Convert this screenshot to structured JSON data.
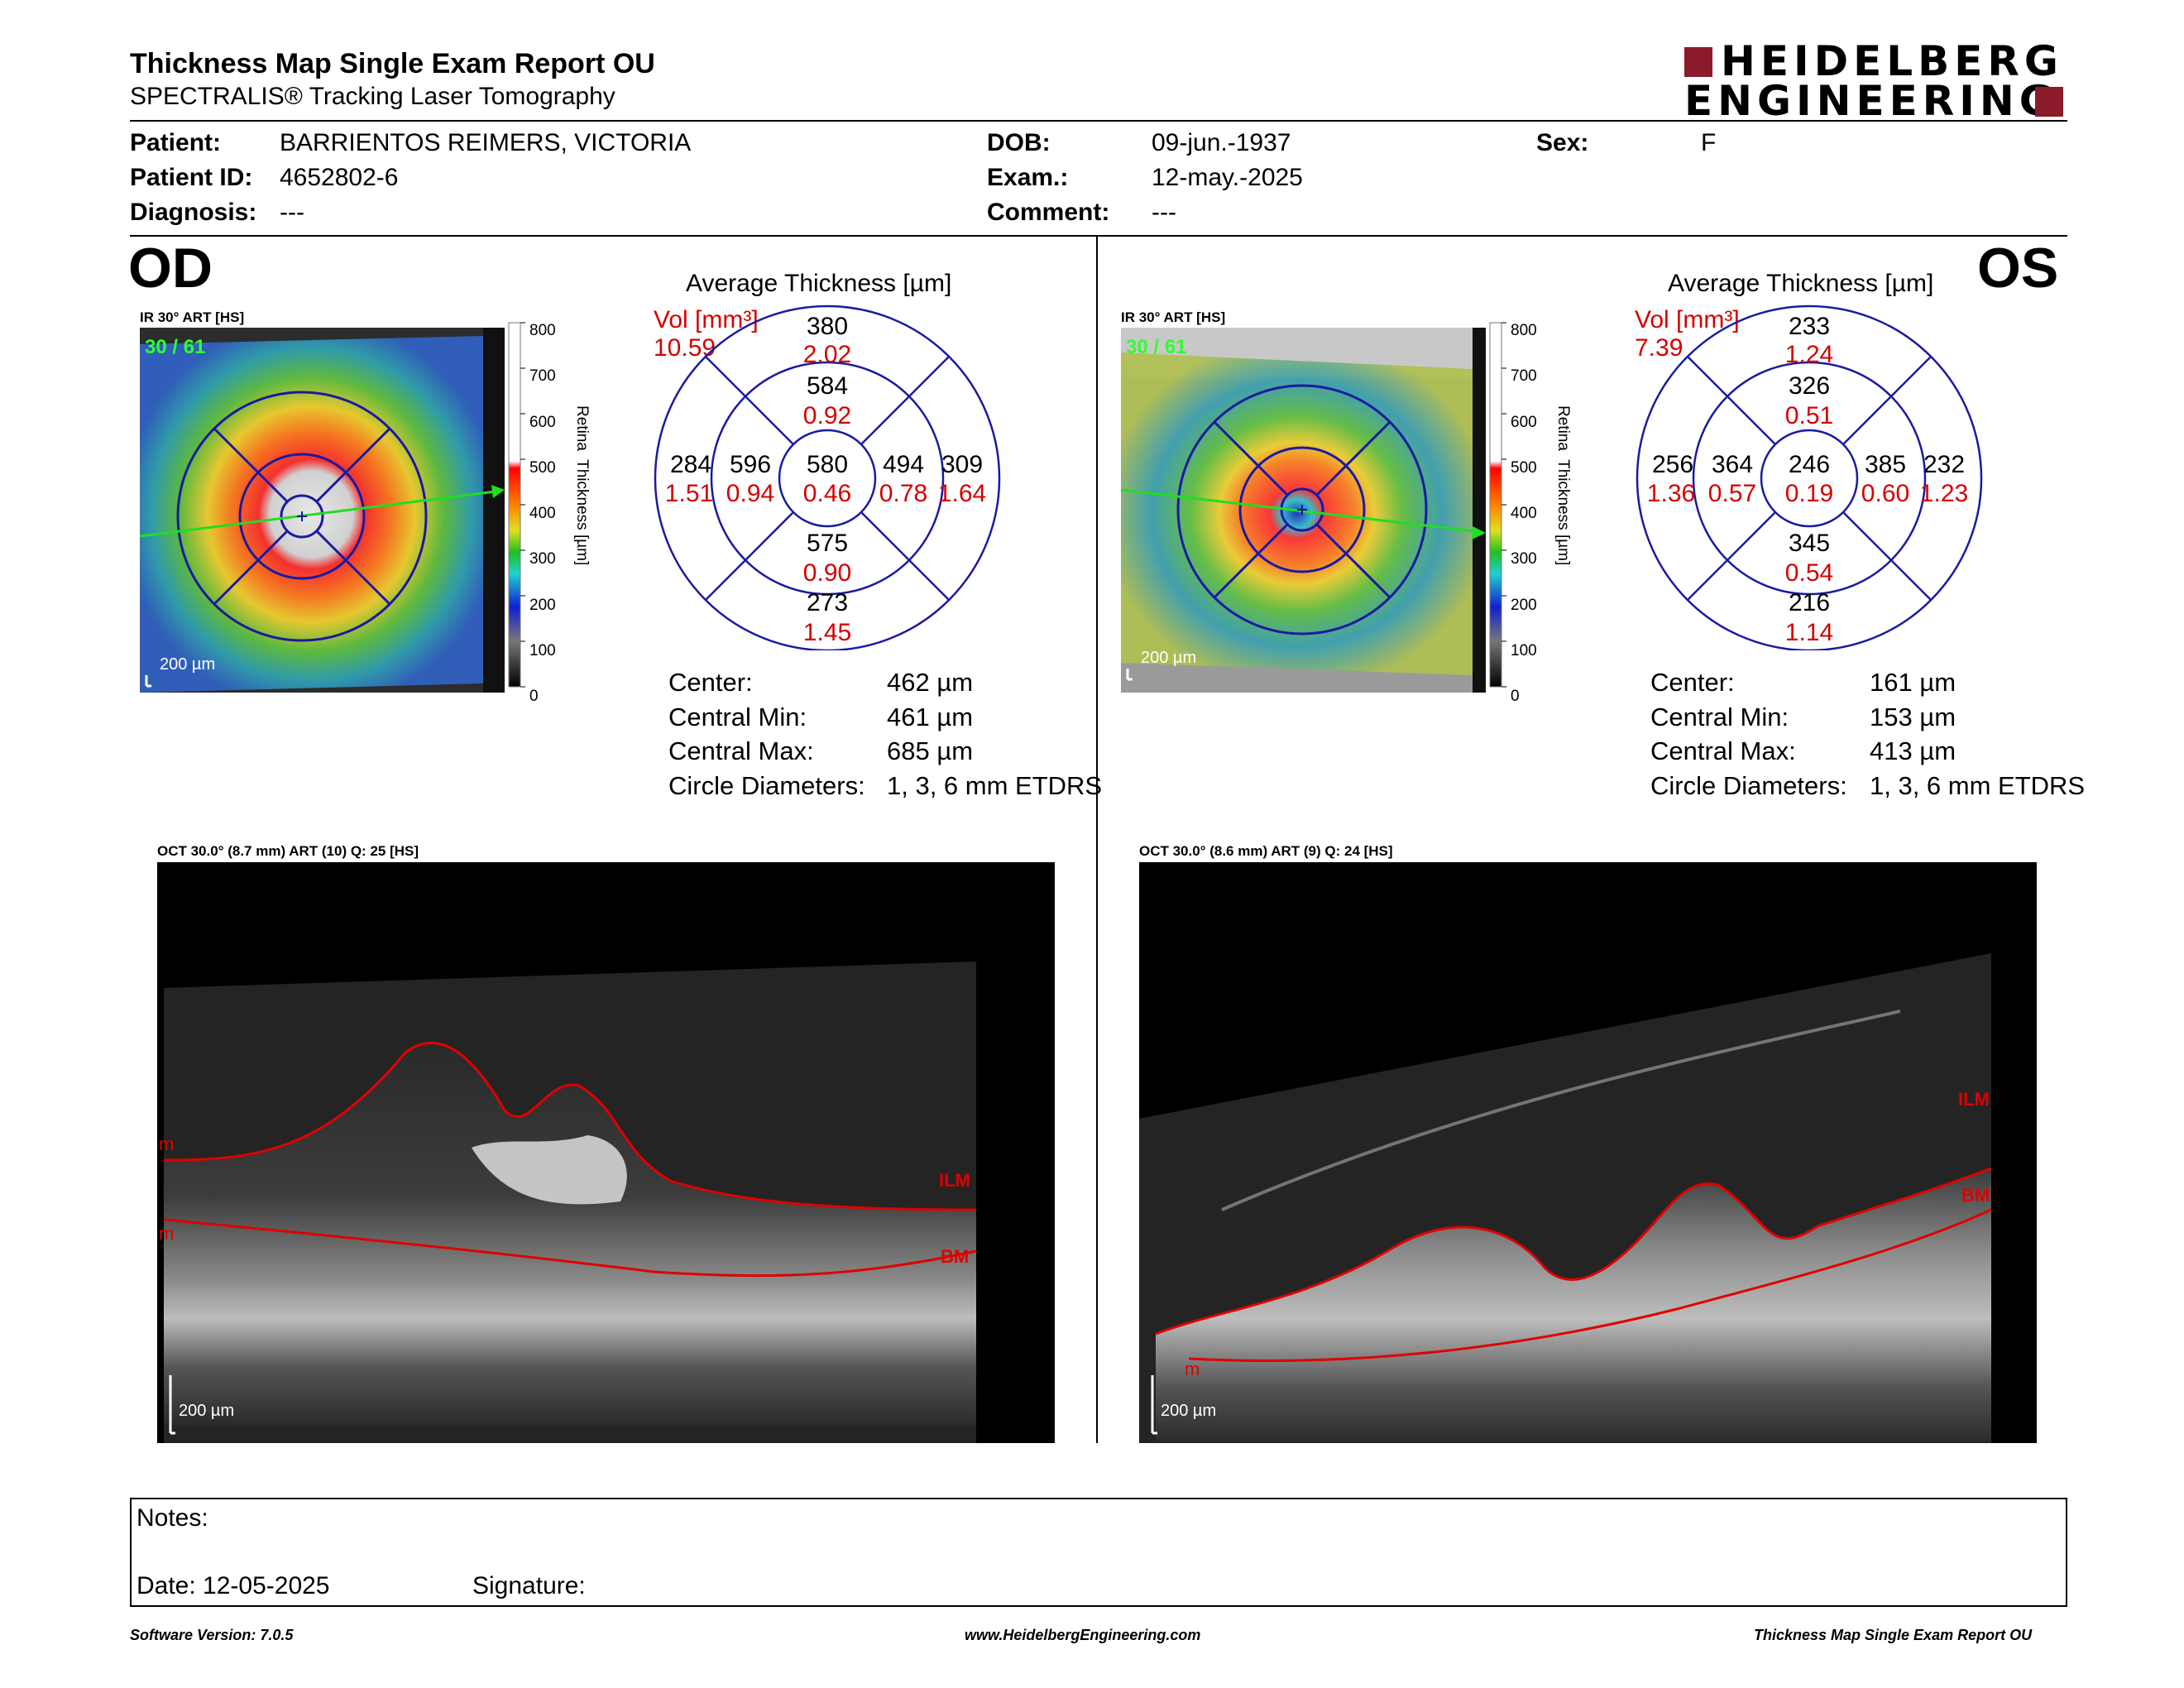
{
  "header": {
    "title": "Thickness Map Single Exam Report OU",
    "subtitle": "SPECTRALIS® Tracking Laser Tomography",
    "logo_line1": "HEIDELBERG",
    "logo_line2": "ENGINEERING"
  },
  "patient": {
    "patient_label": "Patient:",
    "patient_value": "BARRIENTOS REIMERS, VICTORIA",
    "id_label": "Patient ID:",
    "id_value": "4652802-6",
    "diagnosis_label": "Diagnosis:",
    "diagnosis_value": "---",
    "dob_label": "DOB:",
    "dob_value": "09-jun.-1937",
    "exam_label": "Exam.:",
    "exam_value": "12-may.-2025",
    "comment_label": "Comment:",
    "comment_value": "---",
    "sex_label": "Sex:",
    "sex_value": "F"
  },
  "colors": {
    "red_values": "#d40000",
    "ring_blue": "#1a1aa0",
    "logo_red": "#8b1a2b"
  },
  "od": {
    "eye_label": "OD",
    "ir_label": "IR 30° ART [HS]",
    "frame_counter": "30 / 61",
    "scale_bar": "200 µm",
    "colorbar_ticks": [
      "800",
      "700",
      "600",
      "500",
      "400",
      "300",
      "200",
      "100",
      "0"
    ],
    "colorbar_axis": "Retina  Thickness [µm]",
    "avg_title": "Average Thickness [µm]",
    "vol_label": "Vol [mm³]",
    "vol_value": "10.59",
    "sectors": {
      "outer_top": {
        "t": "380",
        "v": "2.02"
      },
      "inner_top": {
        "t": "584",
        "v": "0.92"
      },
      "center": {
        "t": "580",
        "v": "0.46"
      },
      "inner_bottom": {
        "t": "575",
        "v": "0.90"
      },
      "outer_bottom": {
        "t": "273",
        "v": "1.45"
      },
      "outer_left": {
        "t": "284",
        "v": "1.51"
      },
      "inner_left": {
        "t": "596",
        "v": "0.94"
      },
      "inner_right": {
        "t": "494",
        "v": "0.78"
      },
      "outer_right": {
        "t": "309",
        "v": "1.64"
      }
    },
    "stats": [
      {
        "label": "Center:",
        "value": "462 µm"
      },
      {
        "label": "Central Min:",
        "value": "461 µm"
      },
      {
        "label": "Central Max:",
        "value": "685 µm"
      },
      {
        "label": "Circle Diameters:",
        "value": "1, 3, 6 mm ETDRS"
      }
    ],
    "oct_label": "OCT 30.0° (8.7 mm) ART (10) Q: 25 [HS]",
    "oct_scale": "200 µm",
    "layer_ilm": "ILM",
    "layer_bm": "BM",
    "layer_m": "m"
  },
  "os": {
    "eye_label": "OS",
    "ir_label": "IR 30° ART [HS]",
    "frame_counter": "30 / 61",
    "scale_bar": "200 µm",
    "colorbar_ticks": [
      "800",
      "700",
      "600",
      "500",
      "400",
      "300",
      "200",
      "100",
      "0"
    ],
    "colorbar_axis": "Retina  Thickness [µm]",
    "avg_title": "Average Thickness [µm]",
    "vol_label": "Vol [mm³]",
    "vol_value": "7.39",
    "sectors": {
      "outer_top": {
        "t": "233",
        "v": "1.24"
      },
      "inner_top": {
        "t": "326",
        "v": "0.51"
      },
      "center": {
        "t": "246",
        "v": "0.19"
      },
      "inner_bottom": {
        "t": "345",
        "v": "0.54"
      },
      "outer_bottom": {
        "t": "216",
        "v": "1.14"
      },
      "outer_left": {
        "t": "256",
        "v": "1.36"
      },
      "inner_left": {
        "t": "364",
        "v": "0.57"
      },
      "inner_right": {
        "t": "385",
        "v": "0.60"
      },
      "outer_right": {
        "t": "232",
        "v": "1.23"
      }
    },
    "stats": [
      {
        "label": "Center:",
        "value": "161 µm"
      },
      {
        "label": "Central Min:",
        "value": "153 µm"
      },
      {
        "label": "Central Max:",
        "value": "413 µm"
      },
      {
        "label": "Circle Diameters:",
        "value": "1, 3, 6 mm ETDRS"
      }
    ],
    "oct_label": "OCT 30.0° (8.6 mm) ART (9) Q: 24 [HS]",
    "oct_scale": "200 µm",
    "layer_ilm": "ILM",
    "layer_bm": "BM",
    "layer_m": "m"
  },
  "notes": {
    "notes_label": "Notes:",
    "date_label": "Date: 12-05-2025",
    "signature_label": "Signature:"
  },
  "footer": {
    "software": "Software Version: 7.0.5",
    "website": "www.HeidelbergEngineering.com",
    "report_name": "Thickness Map Single Exam Report OU"
  }
}
